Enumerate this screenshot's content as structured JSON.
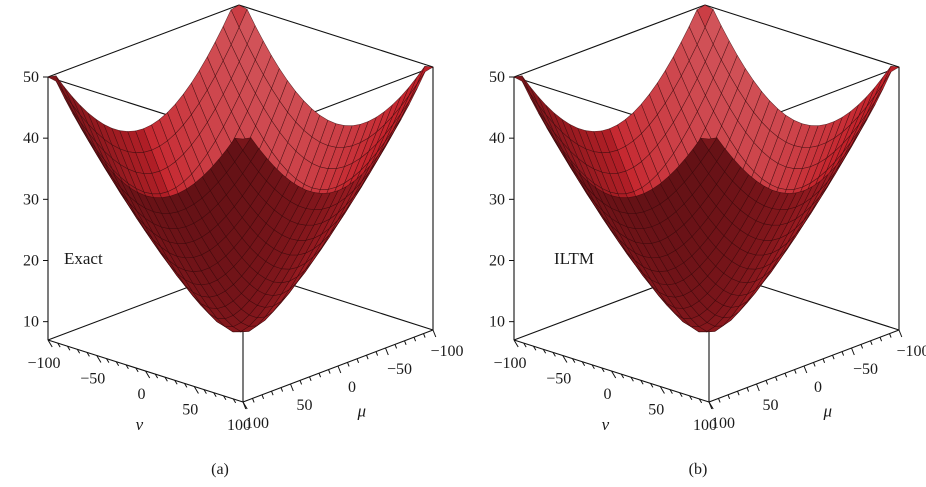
{
  "chart_data": [
    {
      "type": "surface3d",
      "annotation": "Exact",
      "caption": "(a)",
      "zlim": [
        7,
        50
      ],
      "z_ticks": [
        "10",
        "20",
        "30",
        "40",
        "50"
      ],
      "x_axis": {
        "label": "ν",
        "range": [
          -100,
          100
        ],
        "ticks": [
          "−100",
          "−50",
          "0",
          "50",
          "100"
        ]
      },
      "y_axis": {
        "label": "μ",
        "range": [
          -100,
          100
        ],
        "ticks": [
          "−100",
          "−50",
          "0",
          "50",
          "100"
        ]
      },
      "color": "#c4222a"
    },
    {
      "type": "surface3d",
      "annotation": "ILTM",
      "caption": "(b)",
      "zlim": [
        7,
        50
      ],
      "z_ticks": [
        "10",
        "20",
        "30",
        "40",
        "50"
      ],
      "x_axis": {
        "label": "ν",
        "range": [
          -100,
          100
        ],
        "ticks": [
          "−100",
          "−50",
          "0",
          "50",
          "100"
        ]
      },
      "y_axis": {
        "label": "μ",
        "range": [
          -100,
          100
        ],
        "ticks": [
          "−100",
          "−50",
          "0",
          "50",
          "100"
        ]
      },
      "color": "#c4222a"
    }
  ]
}
